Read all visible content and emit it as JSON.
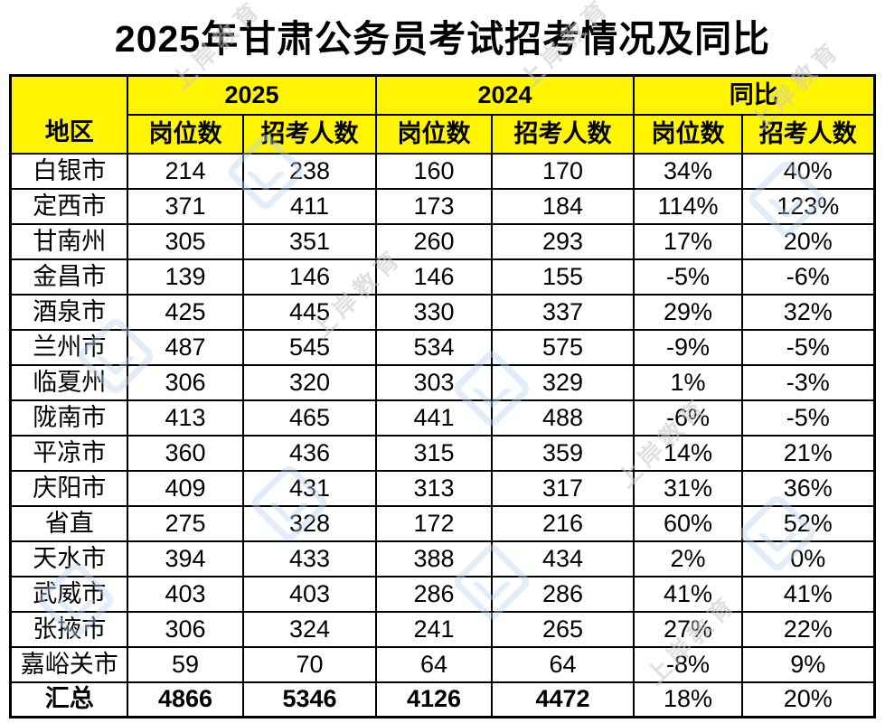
{
  "title": "2025年甘肃公务员考试招考情况及同比",
  "watermark": {
    "text": "上岸教育"
  },
  "colors": {
    "header_bg": "#FFF500",
    "border": "#000000",
    "text": "#000000",
    "watermark_blue": "#BAD6EF",
    "watermark_gray": "#C8C8C8"
  },
  "chart_data": {
    "type": "table",
    "title": "2025年甘肃公务员考试招考情况及同比",
    "corner_label": "地区",
    "column_groups": [
      {
        "label": "2025",
        "span": 2
      },
      {
        "label": "2024",
        "span": 2
      },
      {
        "label": "同比",
        "span": 2
      }
    ],
    "sub_columns": [
      "岗位数",
      "招考人数",
      "岗位数",
      "招考人数",
      "岗位数",
      "招考人数"
    ],
    "rows": [
      {
        "region": "白银市",
        "values": [
          "214",
          "238",
          "160",
          "170",
          "34%",
          "40%"
        ]
      },
      {
        "region": "定西市",
        "values": [
          "371",
          "411",
          "173",
          "184",
          "114%",
          "123%"
        ]
      },
      {
        "region": "甘南州",
        "values": [
          "305",
          "351",
          "260",
          "293",
          "17%",
          "20%"
        ]
      },
      {
        "region": "金昌市",
        "values": [
          "139",
          "146",
          "146",
          "155",
          "-5%",
          "-6%"
        ]
      },
      {
        "region": "酒泉市",
        "values": [
          "425",
          "445",
          "330",
          "337",
          "29%",
          "32%"
        ]
      },
      {
        "region": "兰州市",
        "values": [
          "487",
          "545",
          "534",
          "575",
          "-9%",
          "-5%"
        ]
      },
      {
        "region": "临夏州",
        "values": [
          "306",
          "320",
          "303",
          "329",
          "1%",
          "-3%"
        ]
      },
      {
        "region": "陇南市",
        "values": [
          "413",
          "465",
          "441",
          "488",
          "-6%",
          "-5%"
        ]
      },
      {
        "region": "平凉市",
        "values": [
          "360",
          "436",
          "315",
          "359",
          "14%",
          "21%"
        ]
      },
      {
        "region": "庆阳市",
        "values": [
          "409",
          "431",
          "313",
          "317",
          "31%",
          "36%"
        ]
      },
      {
        "region": "省直",
        "values": [
          "275",
          "328",
          "172",
          "216",
          "60%",
          "52%"
        ]
      },
      {
        "region": "天水市",
        "values": [
          "394",
          "433",
          "388",
          "434",
          "2%",
          "0%"
        ]
      },
      {
        "region": "武威市",
        "values": [
          "403",
          "403",
          "286",
          "286",
          "41%",
          "41%"
        ]
      },
      {
        "region": "张掖市",
        "values": [
          "306",
          "324",
          "241",
          "265",
          "27%",
          "22%"
        ]
      },
      {
        "region": "嘉峪关市",
        "values": [
          "59",
          "70",
          "64",
          "64",
          "-8%",
          "9%"
        ]
      },
      {
        "region": "汇总",
        "values": [
          "4866",
          "5346",
          "4126",
          "4472",
          "18%",
          "20%"
        ],
        "is_total": true
      }
    ]
  }
}
